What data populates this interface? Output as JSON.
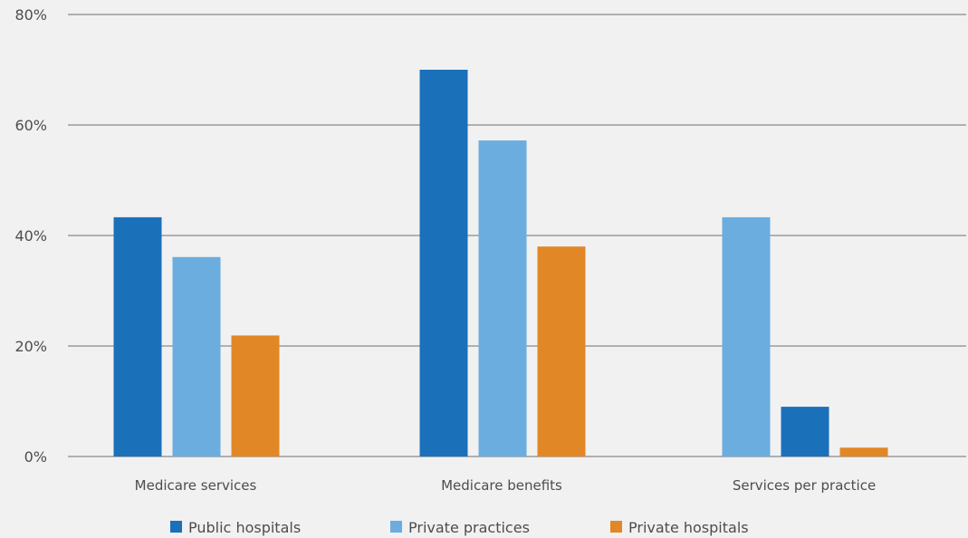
{
  "chart_data": {
    "type": "bar",
    "categories": [
      "Medicare services",
      "Medicare benefits",
      "Services per practice"
    ],
    "ylim": [
      0,
      80
    ],
    "yticks": [
      0,
      20,
      40,
      60,
      80
    ],
    "ytick_labels": [
      "0%",
      "20%",
      "40%",
      "60%",
      "80%"
    ],
    "grid": true,
    "legend_position": "bottom",
    "series": [
      {
        "name": "Public hospitals",
        "color": "#1b70ba",
        "values": [
          43.3,
          70.0,
          9.0
        ]
      },
      {
        "name": "Private practices",
        "color": "#6badde",
        "values": [
          36.1,
          57.2,
          43.3
        ]
      },
      {
        "name": "Private hospitals",
        "color": "#e28726",
        "values": [
          21.9,
          38.0,
          1.6
        ]
      }
    ],
    "bar_order": [
      [
        0,
        1,
        2
      ],
      [
        0,
        1,
        2
      ],
      [
        1,
        0,
        2
      ]
    ]
  }
}
